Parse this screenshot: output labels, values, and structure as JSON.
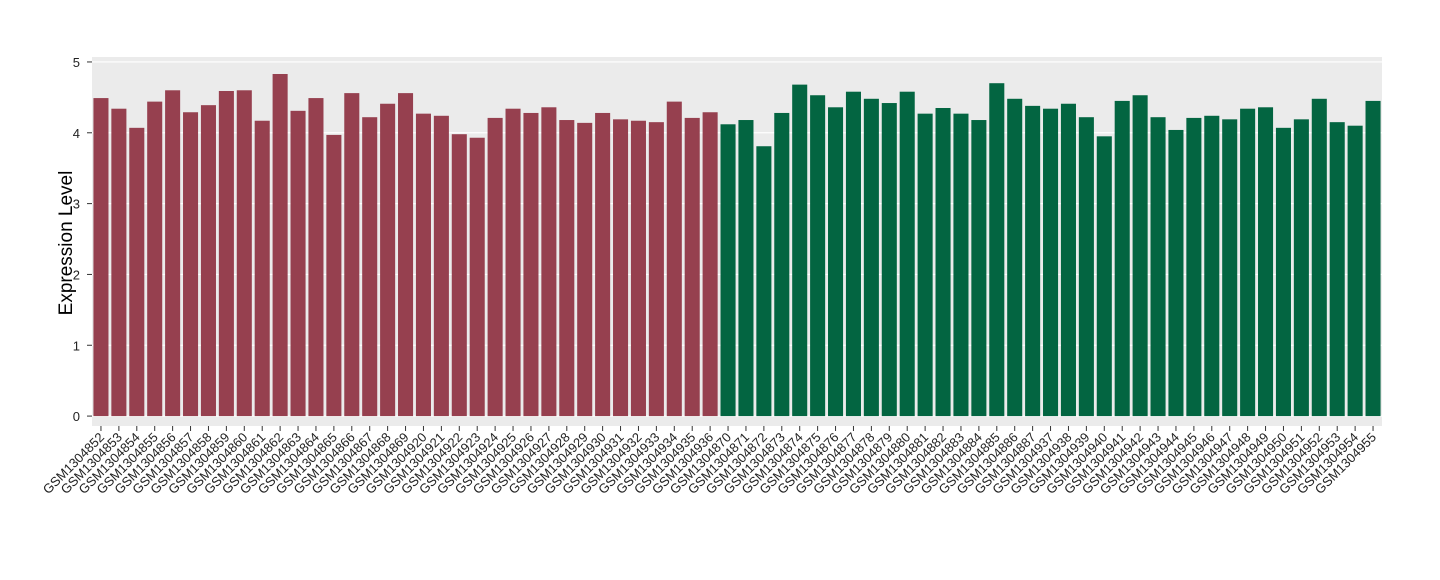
{
  "chart_data": {
    "type": "bar",
    "y_label": "Expression Level",
    "categories": [
      "GSM1304852",
      "GSM1304853",
      "GSM1304854",
      "GSM1304855",
      "GSM1304856",
      "GSM1304857",
      "GSM1304858",
      "GSM1304859",
      "GSM1304860",
      "GSM1304861",
      "GSM1304862",
      "GSM1304863",
      "GSM1304864",
      "GSM1304865",
      "GSM1304866",
      "GSM1304867",
      "GSM1304868",
      "GSM1304869",
      "GSM1304920",
      "GSM1304921",
      "GSM1304922",
      "GSM1304923",
      "GSM1304924",
      "GSM1304925",
      "GSM1304926",
      "GSM1304927",
      "GSM1304928",
      "GSM1304929",
      "GSM1304930",
      "GSM1304931",
      "GSM1304932",
      "GSM1304933",
      "GSM1304934",
      "GSM1304935",
      "GSM1304936",
      "GSM1304870",
      "GSM1304871",
      "GSM1304872",
      "GSM1304873",
      "GSM1304874",
      "GSM1304875",
      "GSM1304876",
      "GSM1304877",
      "GSM1304878",
      "GSM1304879",
      "GSM1304880",
      "GSM1304881",
      "GSM1304882",
      "GSM1304883",
      "GSM1304884",
      "GSM1304885",
      "GSM1304886",
      "GSM1304887",
      "GSM1304937",
      "GSM1304938",
      "GSM1304939",
      "GSM1304940",
      "GSM1304941",
      "GSM1304942",
      "GSM1304943",
      "GSM1304944",
      "GSM1304945",
      "GSM1304946",
      "GSM1304947",
      "GSM1304948",
      "GSM1304949",
      "GSM1304950",
      "GSM1304951",
      "GSM1304952",
      "GSM1304953",
      "GSM1304954",
      "GSM1304955"
    ],
    "values": [
      4.49,
      4.34,
      4.07,
      4.44,
      4.6,
      4.29,
      4.39,
      4.59,
      4.6,
      4.17,
      4.83,
      4.31,
      4.49,
      3.97,
      4.56,
      4.22,
      4.41,
      4.56,
      4.27,
      4.24,
      3.98,
      3.93,
      4.21,
      4.34,
      4.28,
      4.36,
      4.18,
      4.14,
      4.28,
      4.19,
      4.17,
      4.15,
      4.44,
      4.21,
      4.29,
      4.12,
      4.18,
      3.81,
      4.28,
      4.68,
      4.53,
      4.36,
      4.58,
      4.48,
      4.42,
      4.58,
      4.27,
      4.35,
      4.27,
      4.18,
      4.7,
      4.48,
      4.38,
      4.34,
      4.41,
      4.22,
      3.95,
      4.45,
      4.53,
      4.22,
      4.04,
      4.21,
      4.24,
      4.19,
      4.34,
      4.36,
      4.07,
      4.19,
      4.48,
      4.15,
      4.1,
      4.45
    ],
    "colors": [
      "#96404f",
      "#96404f",
      "#96404f",
      "#96404f",
      "#96404f",
      "#96404f",
      "#96404f",
      "#96404f",
      "#96404f",
      "#96404f",
      "#96404f",
      "#96404f",
      "#96404f",
      "#96404f",
      "#96404f",
      "#96404f",
      "#96404f",
      "#96404f",
      "#96404f",
      "#96404f",
      "#96404f",
      "#96404f",
      "#96404f",
      "#96404f",
      "#96404f",
      "#96404f",
      "#96404f",
      "#96404f",
      "#96404f",
      "#96404f",
      "#96404f",
      "#96404f",
      "#96404f",
      "#96404f",
      "#96404f",
      "#036541",
      "#036541",
      "#036541",
      "#036541",
      "#036541",
      "#036541",
      "#036541",
      "#036541",
      "#036541",
      "#036541",
      "#036541",
      "#036541",
      "#036541",
      "#036541",
      "#036541",
      "#036541",
      "#036541",
      "#036541",
      "#036541",
      "#036541",
      "#036541",
      "#036541",
      "#036541",
      "#036541",
      "#036541",
      "#036541",
      "#036541",
      "#036541",
      "#036541",
      "#036541",
      "#036541",
      "#036541",
      "#036541",
      "#036541",
      "#036541",
      "#036541",
      "#036541"
    ],
    "ylim": [
      -0.14,
      5.07
    ],
    "yticks": [
      0,
      1,
      2,
      3,
      4,
      5
    ],
    "grid": true
  }
}
